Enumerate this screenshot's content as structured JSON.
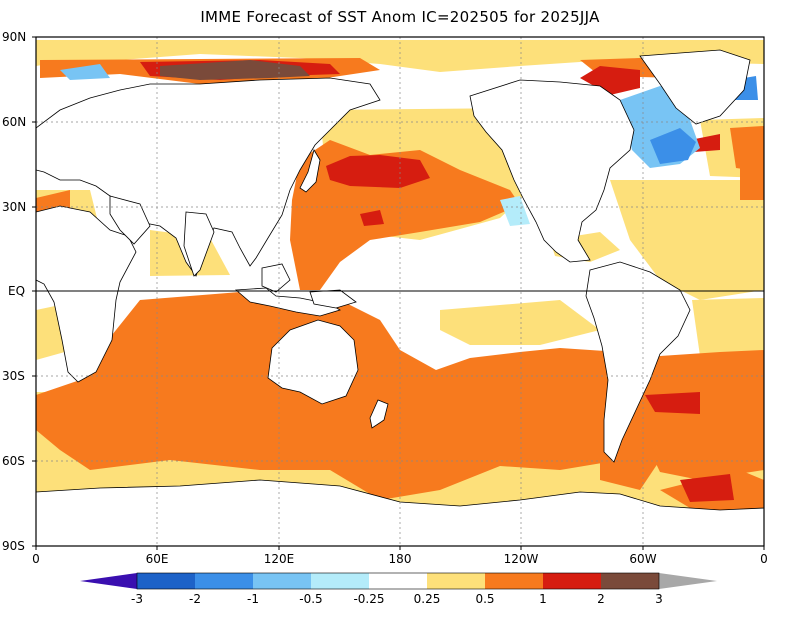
{
  "title": "IMME Forecast of SST Anom IC=202505 for 2025JJA",
  "lat_labels": [
    "90N",
    "60N",
    "30N",
    "EQ",
    "30S",
    "60S",
    "90S"
  ],
  "lon_labels": [
    "0",
    "60E",
    "120E",
    "180",
    "120W",
    "60W",
    "0"
  ],
  "colorbar": {
    "labels": [
      "-3",
      "-2",
      "-1",
      "-0.5",
      "-0.25",
      "0.25",
      "0.5",
      "1",
      "2",
      "3"
    ],
    "colors": [
      "#3a0fb0",
      "#1d62c8",
      "#3b8fe8",
      "#78c4f4",
      "#b4ecfa",
      "#ffffff",
      "#fde07a",
      "#f77a1e",
      "#d61d10",
      "#7a4a3a",
      "#a8a8a8"
    ]
  },
  "colors": {
    "land_outline": "#000000",
    "ocean_neutral": "#ffffff",
    "warm_0_25_to_0_5": "#fde07a",
    "warm_0_5_to_1": "#f77a1e",
    "warm_1_to_2": "#d61d10",
    "warm_2_to_3": "#7a4a3a",
    "cool_minus_0_5_to_minus_0_25": "#b4ecfa",
    "cool_minus_1_to_minus_0_5": "#78c4f4",
    "cool_minus_2_to_minus_1": "#3b8fe8",
    "grid": "#888888"
  }
}
